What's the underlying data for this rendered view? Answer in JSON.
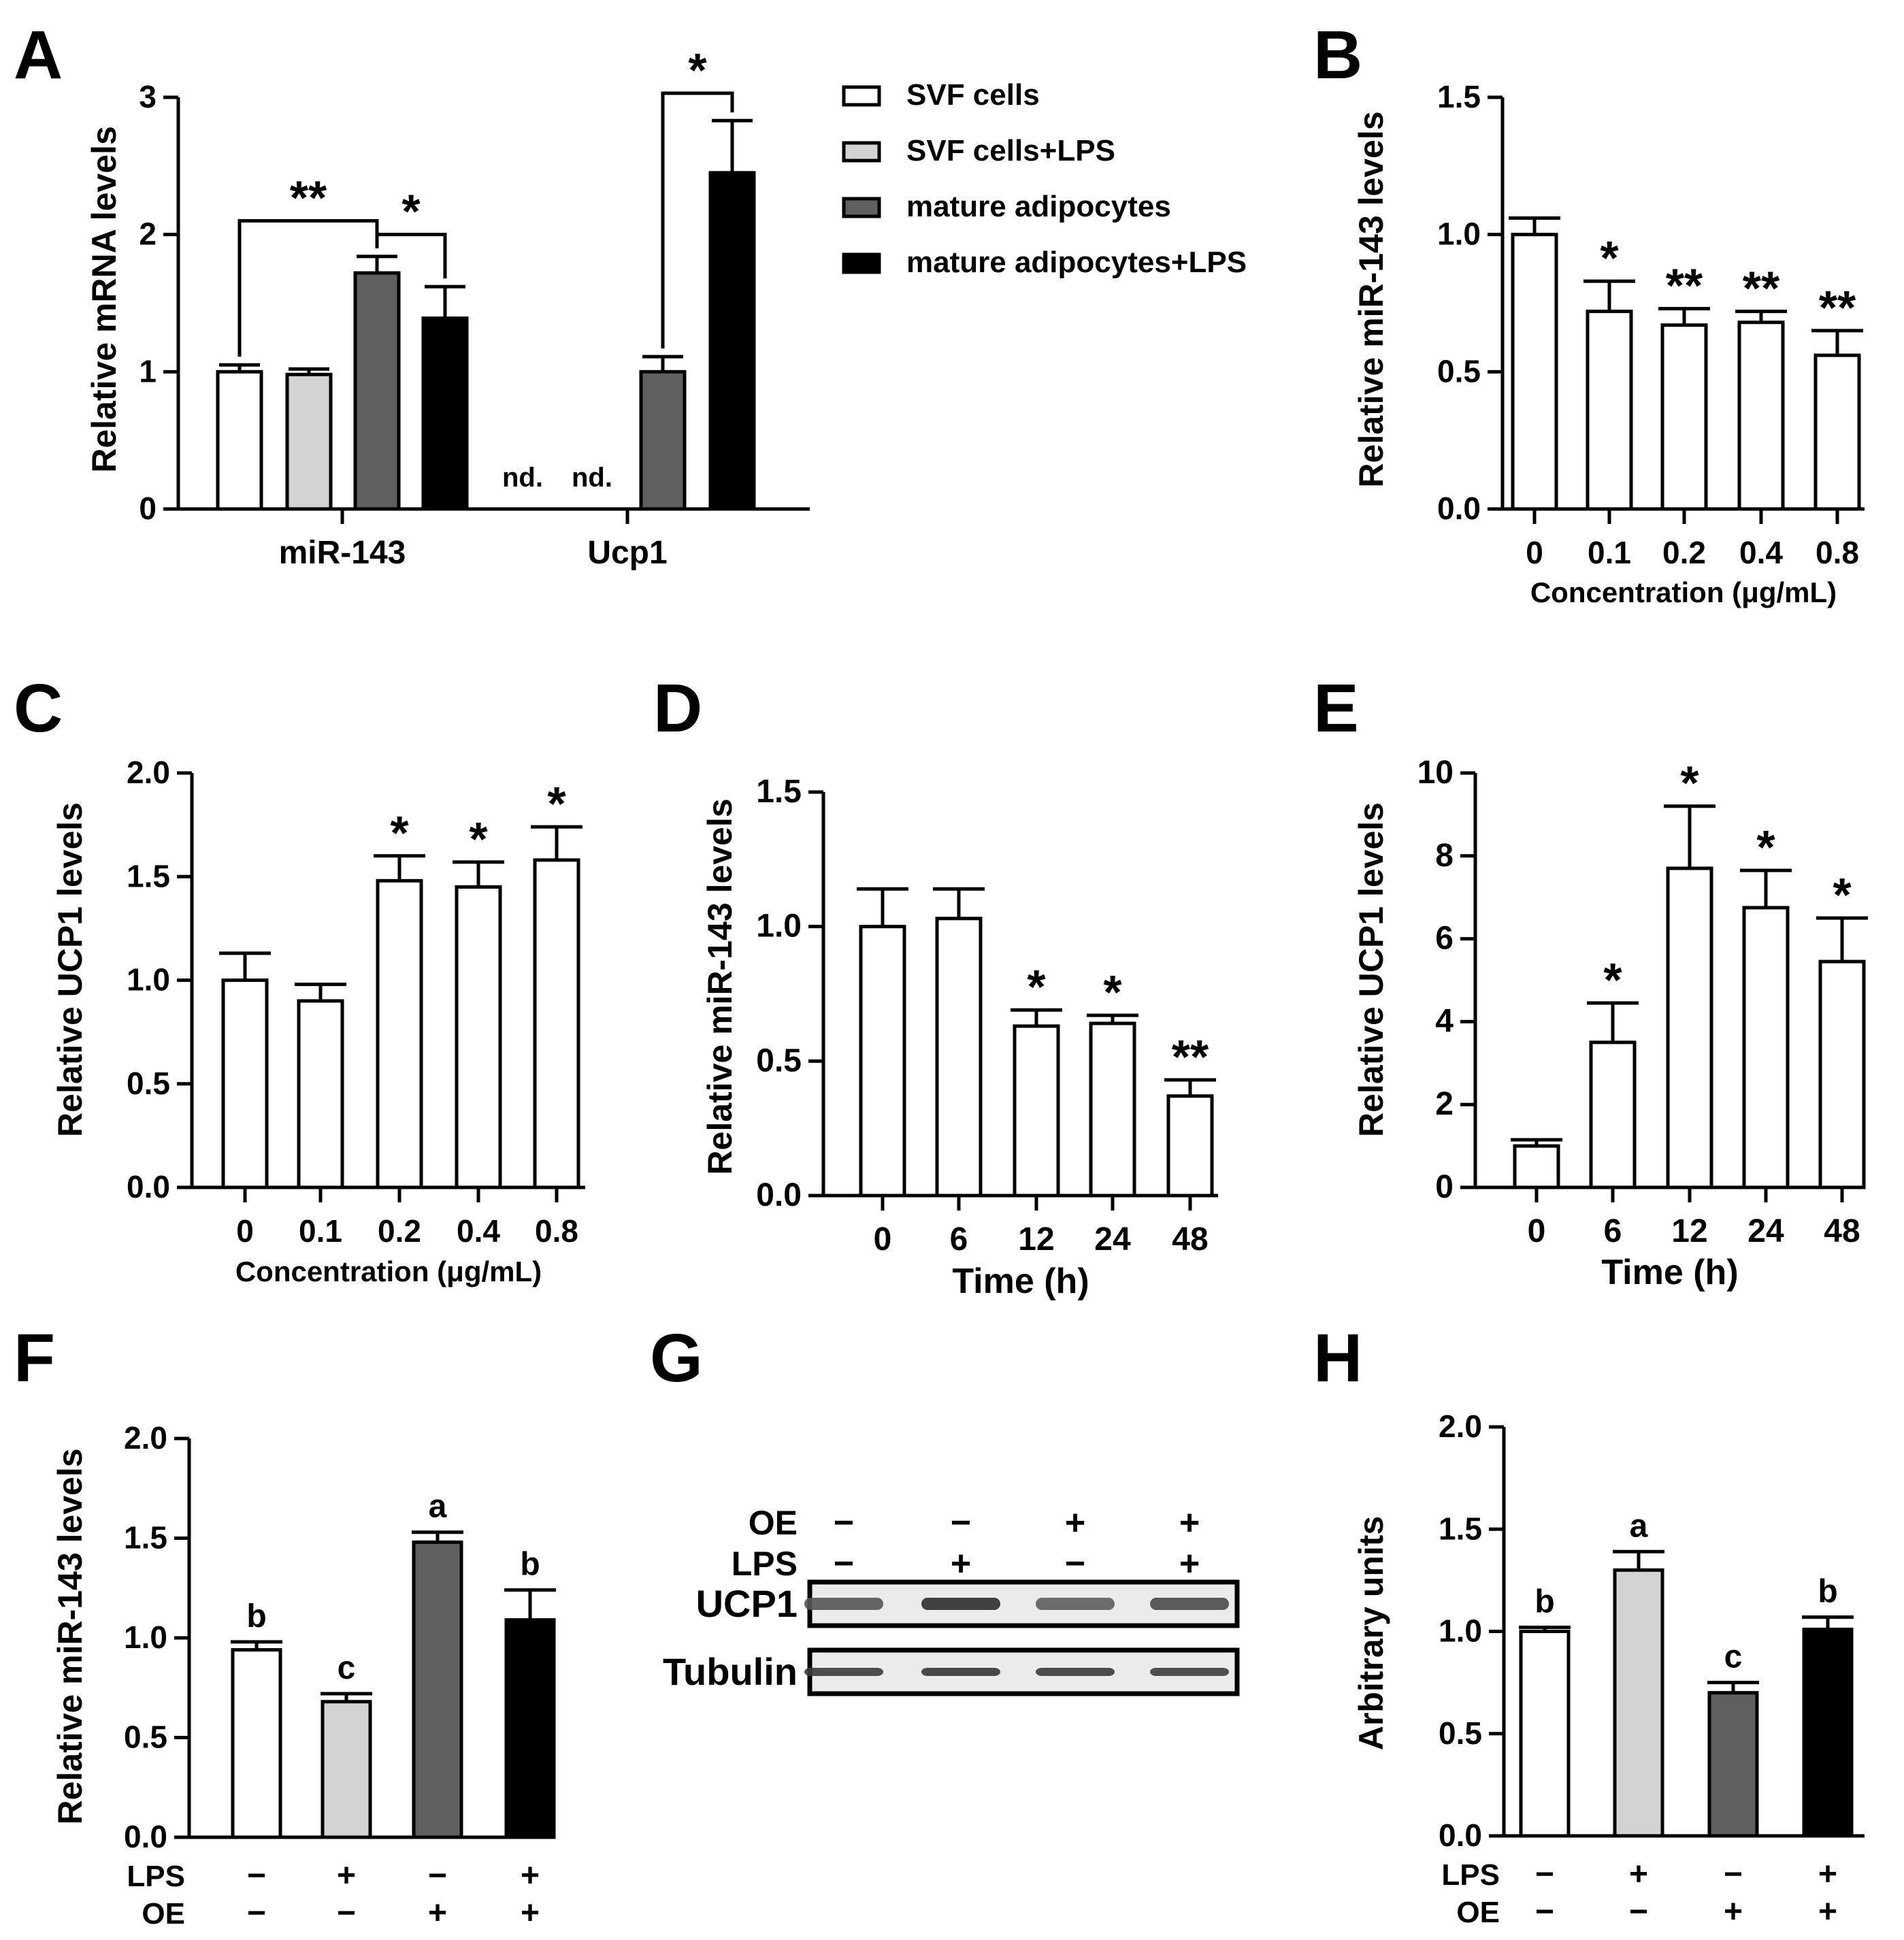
{
  "figure": {
    "panel_labels": [
      "A",
      "B",
      "C",
      "D",
      "E",
      "F",
      "G",
      "H"
    ]
  },
  "colors": {
    "open": "#ffffff",
    "light_gray": "#d3d3d3",
    "dark_gray": "#5f5f5f",
    "black": "#000000"
  },
  "chart_data": [
    {
      "panel": "A",
      "type": "bar",
      "ylabel": "Relative mRNA levels",
      "ylim": [
        0,
        3
      ],
      "yticks": [
        "0",
        "1",
        "2",
        "3"
      ],
      "categories": [
        "miR-143",
        "Ucp1"
      ],
      "legend": {
        "entries": [
          {
            "label": "SVF cells",
            "color": "#ffffff"
          },
          {
            "label": "SVF cells+LPS",
            "color": "#d3d3d3"
          },
          {
            "label": "mature adipocytes",
            "color": "#5f5f5f"
          },
          {
            "label": "mature adipocytes+LPS",
            "color": "#000000"
          }
        ],
        "position": "top-right"
      },
      "series": [
        {
          "name": "SVF cells",
          "color": "#ffffff",
          "values": [
            1.0,
            null
          ],
          "errors": [
            0.05,
            null
          ]
        },
        {
          "name": "SVF cells+LPS",
          "color": "#d3d3d3",
          "values": [
            0.98,
            null
          ],
          "errors": [
            0.04,
            null
          ]
        },
        {
          "name": "mature adipocytes",
          "color": "#5f5f5f",
          "values": [
            1.72,
            1.0
          ],
          "errors": [
            0.12,
            0.11
          ]
        },
        {
          "name": "mature adipocytes+LPS",
          "color": "#000000",
          "values": [
            1.39,
            2.45
          ],
          "errors": [
            0.23,
            0.38
          ]
        }
      ],
      "nd_label": "nd.",
      "significance": [
        {
          "text": "**",
          "group": 0,
          "from": 0,
          "to": 2,
          "y": 2.1
        },
        {
          "text": "*",
          "group": 0,
          "from": 2,
          "to": 3,
          "y": 2.0
        },
        {
          "text": "*",
          "group": 1,
          "from": 2,
          "to": 3,
          "y": 3.03
        }
      ]
    },
    {
      "panel": "B",
      "type": "bar",
      "ylabel": "Relative miR-143 levels",
      "xlabel": "Concentration (μg/mL)",
      "ylim": [
        0,
        1.5
      ],
      "yticks": [
        "0.0",
        "0.5",
        "1.0",
        "1.5"
      ],
      "categories": [
        "0",
        "0.1",
        "0.2",
        "0.4",
        "0.8"
      ],
      "values": [
        1.0,
        0.72,
        0.67,
        0.68,
        0.56
      ],
      "errors": [
        0.06,
        0.11,
        0.06,
        0.04,
        0.09
      ],
      "colors": [
        "#ffffff",
        "#ffffff",
        "#ffffff",
        "#ffffff",
        "#ffffff"
      ],
      "annotations": [
        "",
        "*",
        "**",
        "**",
        "**"
      ]
    },
    {
      "panel": "C",
      "type": "bar",
      "ylabel": "Relative UCP1 levels",
      "xlabel": "Concentration (μg/mL)",
      "ylim": [
        0,
        2.0
      ],
      "yticks": [
        "0.0",
        "0.5",
        "1.0",
        "1.5",
        "2.0"
      ],
      "categories": [
        "0",
        "0.1",
        "0.2",
        "0.4",
        "0.8"
      ],
      "values": [
        1.0,
        0.9,
        1.48,
        1.45,
        1.58
      ],
      "errors": [
        0.13,
        0.08,
        0.12,
        0.12,
        0.16
      ],
      "colors": [
        "#ffffff",
        "#ffffff",
        "#ffffff",
        "#ffffff",
        "#ffffff"
      ],
      "annotations": [
        "",
        "",
        "*",
        "*",
        "*"
      ]
    },
    {
      "panel": "D",
      "type": "bar",
      "ylabel": "Relative miR-143 levels",
      "xlabel": "Time (h)",
      "ylim": [
        0,
        1.5
      ],
      "yticks": [
        "0.0",
        "0.5",
        "1.0",
        "1.5"
      ],
      "categories": [
        "0",
        "6",
        "12",
        "24",
        "48"
      ],
      "values": [
        1.0,
        1.03,
        0.63,
        0.64,
        0.37
      ],
      "errors": [
        0.14,
        0.11,
        0.06,
        0.03,
        0.06
      ],
      "colors": [
        "#ffffff",
        "#ffffff",
        "#ffffff",
        "#ffffff",
        "#ffffff"
      ],
      "annotations": [
        "",
        "",
        "*",
        "*",
        "**"
      ]
    },
    {
      "panel": "E",
      "type": "bar",
      "ylabel": "Relative UCP1 levels",
      "xlabel": "Time (h)",
      "ylim": [
        0,
        10
      ],
      "yticks": [
        "0",
        "2",
        "4",
        "6",
        "8",
        "10"
      ],
      "categories": [
        "0",
        "6",
        "12",
        "24",
        "48"
      ],
      "values": [
        1.0,
        3.5,
        7.7,
        6.75,
        5.45
      ],
      "errors": [
        0.15,
        0.95,
        1.5,
        0.9,
        1.05
      ],
      "colors": [
        "#ffffff",
        "#ffffff",
        "#ffffff",
        "#ffffff",
        "#ffffff"
      ],
      "annotations": [
        "",
        "*",
        "*",
        "*",
        "*"
      ]
    },
    {
      "panel": "F",
      "type": "bar",
      "ylabel": "Relative miR-143 levels",
      "ylim": [
        0,
        2.0
      ],
      "yticks": [
        "0.0",
        "0.5",
        "1.0",
        "1.5",
        "2.0"
      ],
      "values": [
        0.94,
        0.68,
        1.48,
        1.09
      ],
      "errors": [
        0.04,
        0.04,
        0.05,
        0.15
      ],
      "colors": [
        "#ffffff",
        "#d3d3d3",
        "#5f5f5f",
        "#000000"
      ],
      "annotations": [
        "b",
        "c",
        "a",
        "b"
      ],
      "conditions": [
        {
          "label": "LPS",
          "signs": [
            "−",
            "+",
            "−",
            "+"
          ]
        },
        {
          "label": "OE",
          "signs": [
            "−",
            "−",
            "+",
            "+"
          ]
        }
      ]
    },
    {
      "panel": "H",
      "type": "bar",
      "ylabel": "Arbitrary units",
      "ylim": [
        0,
        2.0
      ],
      "yticks": [
        "0.0",
        "0.5",
        "1.0",
        "1.5",
        "2.0"
      ],
      "values": [
        1.0,
        1.3,
        0.7,
        1.01
      ],
      "errors": [
        0.02,
        0.09,
        0.05,
        0.06
      ],
      "colors": [
        "#ffffff",
        "#d3d3d3",
        "#5f5f5f",
        "#000000"
      ],
      "annotations": [
        "b",
        "a",
        "c",
        "b"
      ],
      "conditions": [
        {
          "label": "LPS",
          "signs": [
            "−",
            "+",
            "−",
            "+"
          ]
        },
        {
          "label": "OE",
          "signs": [
            "−",
            "−",
            "+",
            "+"
          ]
        }
      ]
    }
  ],
  "western_blot": {
    "panel": "G",
    "conditions": [
      {
        "label": "OE",
        "signs": [
          "−",
          "−",
          "+",
          "+"
        ]
      },
      {
        "label": "LPS",
        "signs": [
          "−",
          "+",
          "−",
          "+"
        ]
      }
    ],
    "bands": [
      {
        "label": "UCP1",
        "intensity": [
          0.72,
          0.92,
          0.68,
          0.78
        ]
      },
      {
        "label": "Tubulin",
        "intensity": [
          0.85,
          0.88,
          0.86,
          0.84
        ]
      }
    ]
  }
}
